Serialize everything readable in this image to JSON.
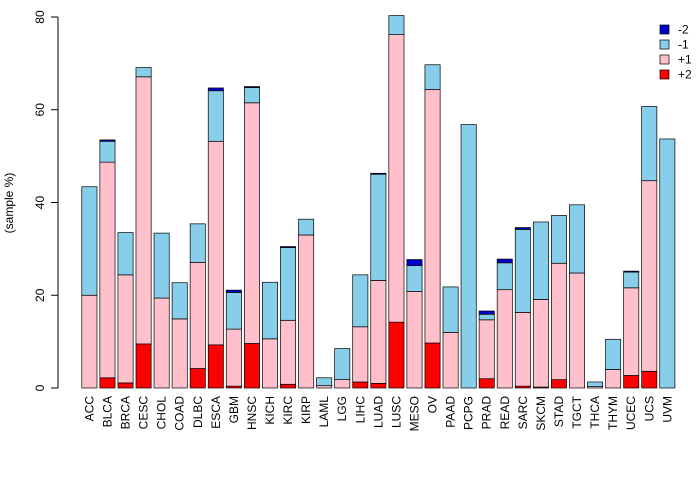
{
  "chart_data": {
    "type": "bar",
    "stacked": true,
    "title": "",
    "xlabel": "",
    "ylabel": "(sample %)",
    "ylim": [
      0,
      80
    ],
    "yticks": [
      0,
      20,
      40,
      60,
      80
    ],
    "legend_position": "top-right",
    "categories": [
      "ACC",
      "BLCA",
      "BRCA",
      "CESC",
      "CHOL",
      "COAD",
      "DLBC",
      "ESCA",
      "GBM",
      "HNSC",
      "KICH",
      "KIRC",
      "KIRP",
      "LAML",
      "LGG",
      "LIHC",
      "LUAD",
      "LUSC",
      "MESO",
      "OV",
      "PAAD",
      "PCPG",
      "PRAD",
      "READ",
      "SARC",
      "SKCM",
      "STAD",
      "TGCT",
      "THCA",
      "THYM",
      "UCEC",
      "UCS",
      "UVM"
    ],
    "series": [
      {
        "name": "+2",
        "color": "#ff0000",
        "values": [
          0,
          2.2,
          1.1,
          9.5,
          0,
          0,
          4.2,
          9.3,
          0.4,
          9.6,
          0,
          0.8,
          0,
          0,
          0,
          1.3,
          1.0,
          14.2,
          0,
          9.7,
          0,
          0,
          2.0,
          0,
          0.4,
          0.2,
          1.8,
          0,
          0,
          0,
          2.7,
          3.6,
          0
        ]
      },
      {
        "name": "+1",
        "color": "#ffc0cb",
        "values": [
          20.0,
          46.5,
          23.3,
          57.6,
          19.4,
          14.9,
          22.9,
          43.9,
          12.3,
          51.9,
          10.6,
          13.8,
          33.0,
          0.5,
          1.8,
          11.9,
          22.2,
          62.0,
          20.8,
          54.7,
          12.0,
          0,
          12.7,
          21.2,
          15.9,
          18.9,
          25.1,
          24.8,
          0.3,
          4.0,
          18.9,
          41.1,
          0
        ]
      },
      {
        "name": "-1",
        "color": "#87ceeb",
        "values": [
          23.4,
          4.5,
          9.1,
          2.0,
          14.0,
          7.8,
          8.3,
          10.9,
          7.9,
          3.3,
          12.2,
          15.7,
          3.4,
          1.7,
          6.7,
          11.2,
          22.9,
          4.1,
          5.6,
          5.3,
          9.8,
          56.8,
          1.2,
          5.8,
          17.9,
          16.7,
          10.3,
          14.7,
          1.0,
          6.5,
          3.4,
          16.0,
          53.7
        ]
      },
      {
        "name": "-2",
        "color": "#0000cd",
        "values": [
          0,
          0.3,
          0,
          0,
          0,
          0,
          0,
          0.6,
          0.5,
          0.2,
          0,
          0.2,
          0,
          0,
          0,
          0,
          0.2,
          0,
          1.3,
          0,
          0,
          0,
          0.7,
          0.8,
          0.4,
          0,
          0,
          0,
          0,
          0,
          0.2,
          0,
          0
        ]
      }
    ],
    "legend_order": [
      "-2",
      "-1",
      "+1",
      "+2"
    ]
  }
}
